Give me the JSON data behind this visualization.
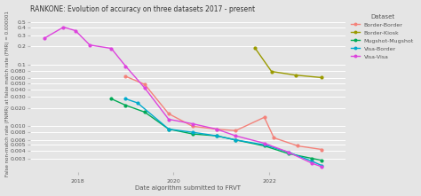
{
  "title": "RANKONE: Evolution of accuracy on three datasets 2017 - present",
  "xlabel": "Date algorithm submitted to FRVT",
  "ylabel": "False non-match rate (FNMR) at false match rate (FMR) = 0.000001",
  "background_color": "#e5e5e5",
  "legend_title": "Dataset",
  "xlim": [
    2017.0,
    2023.6
  ],
  "xticks": [
    2018,
    2020,
    2022
  ],
  "series": [
    {
      "name": "Border-Border",
      "color": "#f4827a",
      "x": [
        2019.0,
        2019.4,
        2019.9,
        2020.4,
        2020.9,
        2021.3,
        2021.9,
        2022.1,
        2022.6,
        2023.1
      ],
      "y": [
        0.065,
        0.048,
        0.016,
        0.01,
        0.009,
        0.0085,
        0.014,
        0.0065,
        0.0048,
        0.0042
      ]
    },
    {
      "name": "Border-Kiosk",
      "color": "#9a9a00",
      "x": [
        2021.7,
        2022.05,
        2022.55,
        2023.1
      ],
      "y": [
        0.19,
        0.078,
        0.068,
        0.062
      ]
    },
    {
      "name": "Mugshot-Mugshot",
      "color": "#00aa55",
      "x": [
        2018.7,
        2019.0,
        2019.4,
        2019.9,
        2020.4,
        2020.9,
        2021.3,
        2021.9,
        2022.4,
        2022.9,
        2023.1
      ],
      "y": [
        0.028,
        0.022,
        0.017,
        0.009,
        0.0075,
        0.007,
        0.006,
        0.0048,
        0.0036,
        0.003,
        0.0028
      ]
    },
    {
      "name": "Visa-Border",
      "color": "#00aacc",
      "x": [
        2019.0,
        2019.25,
        2019.9,
        2020.4,
        2020.9,
        2021.3,
        2021.9,
        2022.4,
        2022.9,
        2023.1
      ],
      "y": [
        0.028,
        0.024,
        0.009,
        0.008,
        0.007,
        0.006,
        0.005,
        0.0038,
        0.0027,
        0.0023
      ]
    },
    {
      "name": "Visa-Visa",
      "color": "#dd44dd",
      "x": [
        2017.3,
        2017.7,
        2017.95,
        2018.25,
        2018.7,
        2019.0,
        2019.4,
        2019.9,
        2020.4,
        2020.9,
        2021.3,
        2021.9,
        2022.4,
        2022.9,
        2023.1
      ],
      "y": [
        0.27,
        0.41,
        0.36,
        0.21,
        0.185,
        0.095,
        0.042,
        0.013,
        0.011,
        0.009,
        0.007,
        0.0053,
        0.0038,
        0.0025,
        0.0022
      ]
    }
  ]
}
